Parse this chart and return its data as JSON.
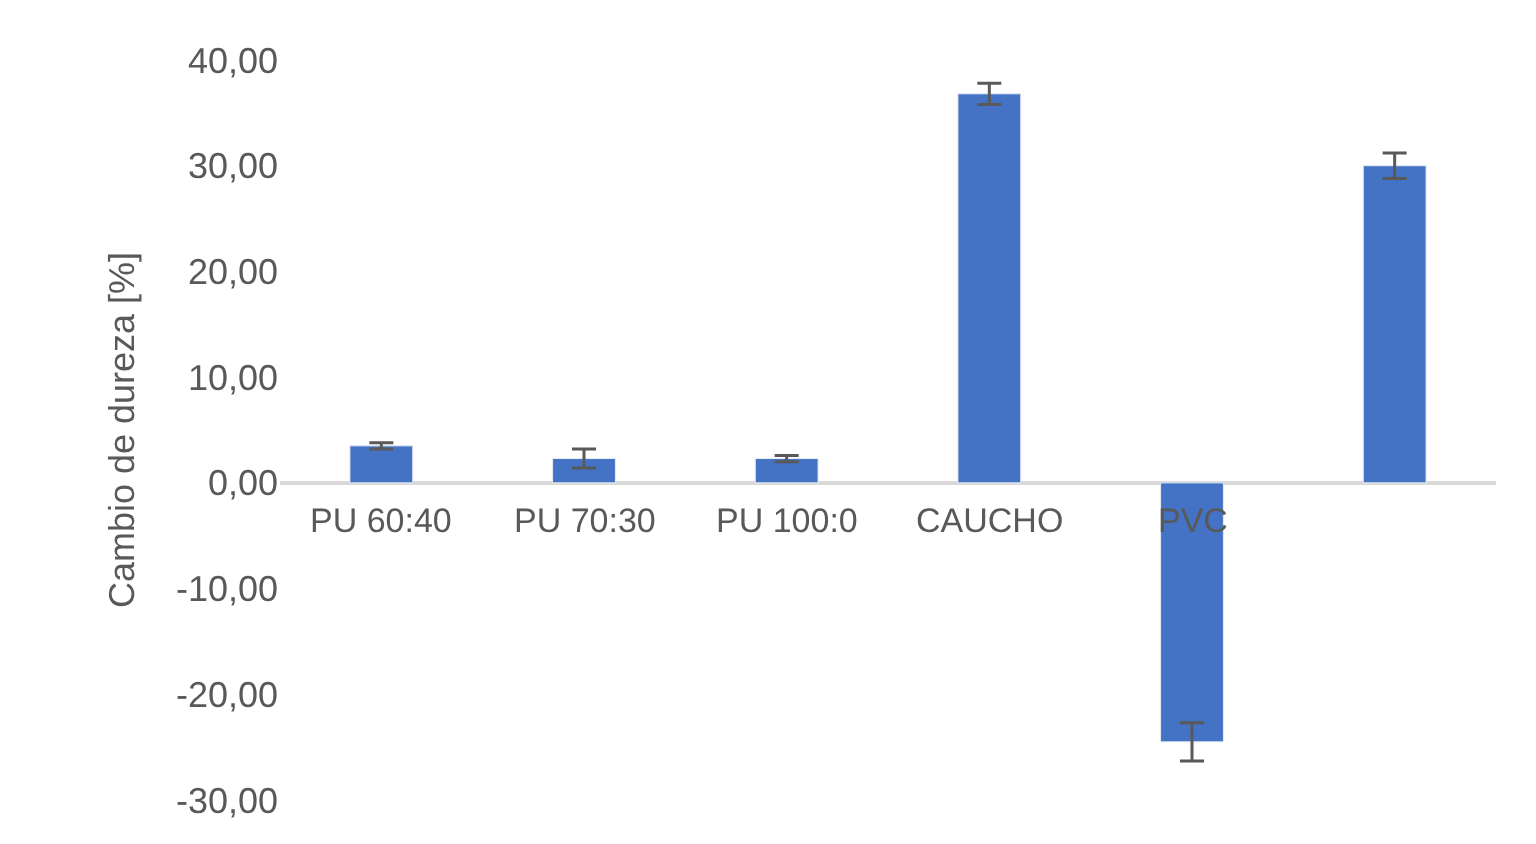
{
  "chart_data": {
    "type": "bar",
    "ylabel": "Cambio de dureza [%]",
    "categories": [
      "PU 60:40",
      "PU 70:30",
      "PU 100:0",
      "CAUCHO",
      "PVC",
      null
    ],
    "values": [
      3.5,
      2.3,
      2.3,
      36.8,
      -24.5,
      30.0
    ],
    "errors": [
      0.3,
      0.9,
      0.3,
      1.0,
      1.8,
      1.2
    ],
    "color": "#4472c4",
    "ylim": [
      -30,
      40
    ],
    "yticks": [
      {
        "value": -30,
        "label": "-30,00"
      },
      {
        "value": -20,
        "label": "-20,00"
      },
      {
        "value": -10,
        "label": "-10,00"
      },
      {
        "value": 0,
        "label": "0,00"
      },
      {
        "value": 10,
        "label": "10,00"
      },
      {
        "value": 20,
        "label": "20,00"
      },
      {
        "value": 30,
        "label": "30,00"
      },
      {
        "value": 40,
        "label": "40,00"
      }
    ]
  }
}
